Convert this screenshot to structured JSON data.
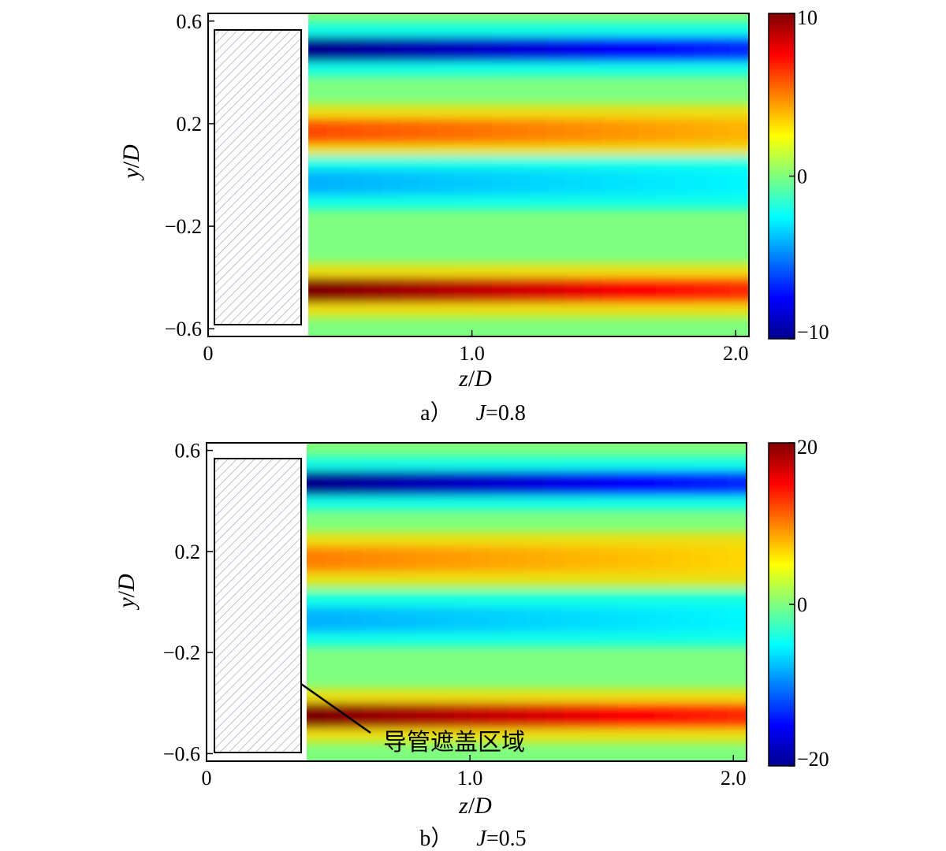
{
  "chart_data": [
    {
      "type": "heatmap",
      "panel": "a)",
      "caption_prefix": "a）",
      "caption_var": "J",
      "caption_value": "=0.8",
      "xlabel_var": "z",
      "xlabel_den": "D",
      "ylabel_var": "y",
      "ylabel_den": "D",
      "xlim": [
        0,
        2.05
      ],
      "ylim": [
        -0.63,
        0.63
      ],
      "x_ticks": [
        0,
        1.0,
        2.0
      ],
      "x_tick_labels": [
        "0",
        "1.0",
        "2.0"
      ],
      "y_ticks": [
        0.6,
        0.2,
        -0.2,
        -0.6
      ],
      "y_tick_labels": [
        "0.6",
        "0.2",
        "−0.2",
        "−0.6"
      ],
      "colorbar": {
        "min": -10,
        "max": 10,
        "tick_labels": [
          "10",
          "0",
          "−10"
        ]
      },
      "covered_region_z": [
        0,
        0.38
      ],
      "bands": [
        {
          "y": 0.49,
          "value": -10,
          "label": "blue"
        },
        {
          "y": 0.17,
          "value": 6,
          "label": "orange"
        },
        {
          "y": -0.03,
          "value": -4,
          "label": "cyan"
        },
        {
          "y": -0.45,
          "value": 10,
          "label": "red"
        }
      ],
      "grid": false
    },
    {
      "type": "heatmap",
      "panel": "b)",
      "caption_prefix": "b）",
      "caption_var": "J",
      "caption_value": "=0.5",
      "xlabel_var": "z",
      "xlabel_den": "D",
      "ylabel_var": "y",
      "ylabel_den": "D",
      "xlim": [
        0,
        2.05
      ],
      "ylim": [
        -0.63,
        0.63
      ],
      "x_ticks": [
        0,
        1.0,
        2.0
      ],
      "x_tick_labels": [
        "0",
        "1.0",
        "2.0"
      ],
      "y_ticks": [
        0.6,
        0.2,
        -0.2,
        -0.6
      ],
      "y_tick_labels": [
        "0.6",
        "0.2",
        "−0.2",
        "−0.6"
      ],
      "colorbar": {
        "min": -20,
        "max": 20,
        "tick_labels": [
          "20",
          "0",
          "−20"
        ]
      },
      "covered_region_z": [
        0,
        0.38
      ],
      "bands": [
        {
          "y": 0.47,
          "value": -20,
          "label": "blue"
        },
        {
          "y": 0.17,
          "value": 10,
          "label": "orange"
        },
        {
          "y": -0.07,
          "value": -8,
          "label": "cyan"
        },
        {
          "y": -0.45,
          "value": 20,
          "label": "red"
        }
      ],
      "annotation": "导管遮盖区域",
      "grid": false
    }
  ]
}
